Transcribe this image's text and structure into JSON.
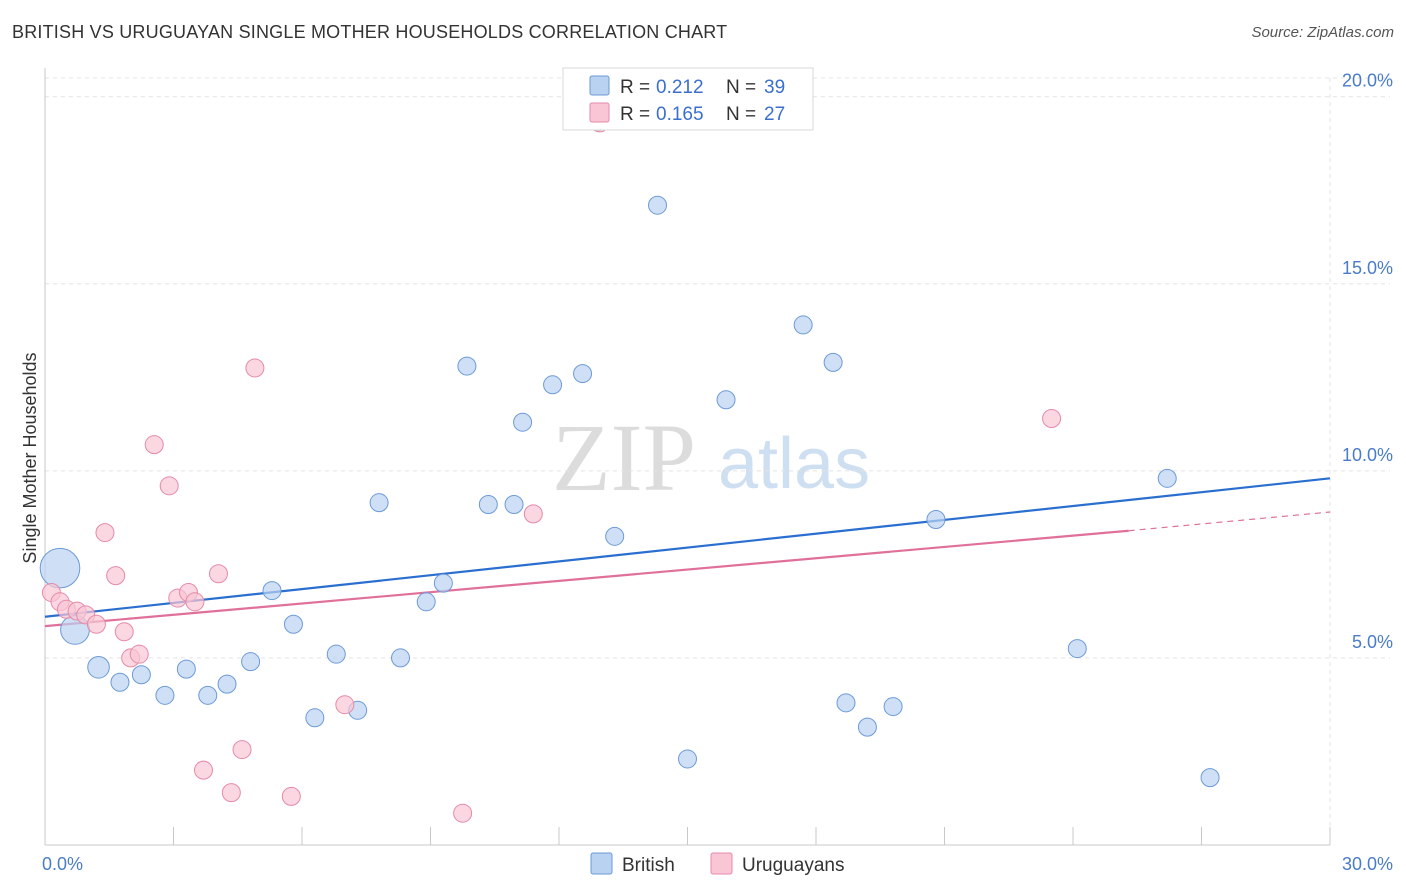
{
  "title": "BRITISH VS URUGUAYAN SINGLE MOTHER HOUSEHOLDS CORRELATION CHART",
  "source": "Source: ZipAtlas.com",
  "watermark": {
    "zip": "ZIP",
    "atlas": "atlas"
  },
  "colors": {
    "british_fill": "#b9d2f2",
    "british_stroke": "#6c9bd6",
    "british_line": "#2a6fd0",
    "uruguayan_fill": "#f8c6d4",
    "uruguayan_stroke": "#e68aa8",
    "uruguayan_line": "#e0709a",
    "grid": "#e3e3e3",
    "tick_text": "#4a7cc7"
  },
  "legend": {
    "r_label": "R =",
    "n_label": "N =",
    "british": {
      "r": "0.212",
      "n": "39"
    },
    "uruguayans": {
      "r": "0.165",
      "n": "27"
    }
  },
  "chart_data": {
    "type": "scatter",
    "title": "BRITISH VS URUGUAYAN SINGLE MOTHER HOUSEHOLDS CORRELATION CHART",
    "xlabel": "",
    "ylabel": "Single Mother Households",
    "xlim": [
      0,
      30
    ],
    "ylim": [
      0,
      20.5
    ],
    "x_tick_labels": [
      "0.0%",
      "30.0%"
    ],
    "y_ticks": [
      5,
      10,
      15,
      20
    ],
    "y_tick_labels": [
      "5.0%",
      "10.0%",
      "15.0%",
      "20.0%"
    ],
    "grid": true,
    "legend_position": "top-center",
    "series": [
      {
        "name": "British",
        "trend": {
          "x0": 0,
          "y0": 6.1,
          "x1": 30,
          "y1": 9.8
        },
        "points": [
          {
            "x": 0.35,
            "y": 7.4,
            "s": 2.2
          },
          {
            "x": 0.7,
            "y": 5.75,
            "s": 1.6
          },
          {
            "x": 1.25,
            "y": 4.75,
            "s": 1.2
          },
          {
            "x": 1.75,
            "y": 4.35,
            "s": 1
          },
          {
            "x": 2.25,
            "y": 4.55,
            "s": 1
          },
          {
            "x": 2.8,
            "y": 4.0,
            "s": 1
          },
          {
            "x": 3.3,
            "y": 4.7,
            "s": 1
          },
          {
            "x": 3.8,
            "y": 4.0,
            "s": 1
          },
          {
            "x": 4.25,
            "y": 4.3,
            "s": 1
          },
          {
            "x": 4.8,
            "y": 4.9,
            "s": 1
          },
          {
            "x": 5.3,
            "y": 6.8,
            "s": 1
          },
          {
            "x": 5.8,
            "y": 5.9,
            "s": 1
          },
          {
            "x": 6.3,
            "y": 3.4,
            "s": 1
          },
          {
            "x": 6.8,
            "y": 5.1,
            "s": 1
          },
          {
            "x": 7.3,
            "y": 3.6,
            "s": 1
          },
          {
            "x": 7.8,
            "y": 9.15,
            "s": 1
          },
          {
            "x": 8.3,
            "y": 5.0,
            "s": 1
          },
          {
            "x": 8.9,
            "y": 6.5,
            "s": 1
          },
          {
            "x": 9.3,
            "y": 7.0,
            "s": 1
          },
          {
            "x": 9.85,
            "y": 12.8,
            "s": 1
          },
          {
            "x": 10.35,
            "y": 9.1,
            "s": 1
          },
          {
            "x": 10.95,
            "y": 9.1,
            "s": 1
          },
          {
            "x": 11.15,
            "y": 11.3,
            "s": 1
          },
          {
            "x": 11.85,
            "y": 12.3,
            "s": 1
          },
          {
            "x": 12.55,
            "y": 12.6,
            "s": 1
          },
          {
            "x": 13.3,
            "y": 8.25,
            "s": 1
          },
          {
            "x": 14.3,
            "y": 17.1,
            "s": 1
          },
          {
            "x": 15.0,
            "y": 2.3,
            "s": 1
          },
          {
            "x": 15.9,
            "y": 11.9,
            "s": 1
          },
          {
            "x": 17.7,
            "y": 13.9,
            "s": 1
          },
          {
            "x": 18.4,
            "y": 12.9,
            "s": 1
          },
          {
            "x": 18.7,
            "y": 3.8,
            "s": 1
          },
          {
            "x": 19.2,
            "y": 3.15,
            "s": 1
          },
          {
            "x": 19.8,
            "y": 3.7,
            "s": 1
          },
          {
            "x": 20.8,
            "y": 8.7,
            "s": 1
          },
          {
            "x": 24.1,
            "y": 5.25,
            "s": 1
          },
          {
            "x": 26.2,
            "y": 9.8,
            "s": 1
          },
          {
            "x": 27.2,
            "y": 1.8,
            "s": 1
          },
          {
            "x": 12.9,
            "y": 19.3,
            "s": 0.9
          }
        ]
      },
      {
        "name": "Uruguayans",
        "trend": {
          "x0": 0,
          "y0": 5.85,
          "x1": 25.3,
          "y1": 8.4,
          "dash_to_x": 30,
          "dash_to_y": 8.9
        },
        "points": [
          {
            "x": 0.15,
            "y": 6.75,
            "s": 1
          },
          {
            "x": 0.35,
            "y": 6.5,
            "s": 1
          },
          {
            "x": 0.5,
            "y": 6.3,
            "s": 1
          },
          {
            "x": 0.75,
            "y": 6.25,
            "s": 1
          },
          {
            "x": 0.95,
            "y": 6.15,
            "s": 1
          },
          {
            "x": 1.2,
            "y": 5.9,
            "s": 1
          },
          {
            "x": 1.4,
            "y": 8.35,
            "s": 1
          },
          {
            "x": 1.65,
            "y": 7.2,
            "s": 1
          },
          {
            "x": 1.85,
            "y": 5.7,
            "s": 1
          },
          {
            "x": 2.0,
            "y": 5.0,
            "s": 1
          },
          {
            "x": 2.2,
            "y": 5.1,
            "s": 1
          },
          {
            "x": 2.55,
            "y": 10.7,
            "s": 1
          },
          {
            "x": 2.9,
            "y": 9.6,
            "s": 1
          },
          {
            "x": 3.1,
            "y": 6.6,
            "s": 1
          },
          {
            "x": 3.35,
            "y": 6.75,
            "s": 1
          },
          {
            "x": 3.5,
            "y": 6.5,
            "s": 1
          },
          {
            "x": 3.7,
            "y": 2.0,
            "s": 1
          },
          {
            "x": 4.05,
            "y": 7.25,
            "s": 1
          },
          {
            "x": 4.35,
            "y": 1.4,
            "s": 1
          },
          {
            "x": 4.6,
            "y": 2.55,
            "s": 1
          },
          {
            "x": 4.9,
            "y": 12.75,
            "s": 1
          },
          {
            "x": 5.75,
            "y": 1.3,
            "s": 1
          },
          {
            "x": 7.0,
            "y": 3.75,
            "s": 1
          },
          {
            "x": 9.75,
            "y": 0.85,
            "s": 1
          },
          {
            "x": 11.4,
            "y": 8.85,
            "s": 1
          },
          {
            "x": 12.95,
            "y": 19.3,
            "s": 1
          },
          {
            "x": 23.5,
            "y": 11.4,
            "s": 1
          }
        ]
      }
    ]
  }
}
